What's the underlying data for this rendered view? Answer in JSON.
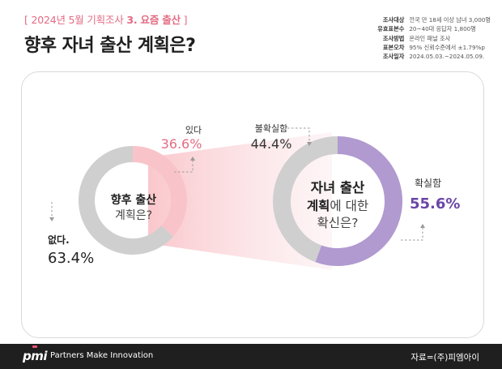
{
  "header": {
    "tag_open": "[ ",
    "tag_text": "2024년 5월 기획조사 ",
    "tag_strong": "3. 요즘 출산",
    "tag_close": " ]",
    "title": "향후 자녀 출산 계획은?"
  },
  "survey_info": [
    {
      "label": "조사대상",
      "value": "전국 만 18세 이상 남녀 3,000명"
    },
    {
      "label": "유효표본수",
      "value": "20~40대 응답자 1,800명"
    },
    {
      "label": "조사방법",
      "value": "온라인 패널 조사"
    },
    {
      "label": "표본오차",
      "value": "95% 신뢰수준에서 ±1.79%p"
    },
    {
      "label": "조사일자",
      "value": "2024.05.03.~2024.05.09."
    }
  ],
  "chart_data": [
    {
      "type": "pie",
      "variant": "donut",
      "title": "향후 출산 계획은?",
      "title_bold": "향후 출산",
      "title_light": "계획은?",
      "slices": [
        {
          "label": "있다",
          "value": 36.6,
          "display": "36.6%"
        },
        {
          "label": "없다.",
          "value": 63.4,
          "display": "63.4%"
        }
      ]
    },
    {
      "type": "pie",
      "variant": "donut",
      "title": "자녀 출산 계획에 대한 확신은?",
      "title_line1": "자녀 출산",
      "title_line2_bold": "계획",
      "title_line2_light": "에 대한",
      "title_line3": "확신은?",
      "slices": [
        {
          "label": "확실함",
          "value": 55.6,
          "display": "55.6%"
        },
        {
          "label": "불확실함",
          "value": 44.4,
          "display": "44.4%"
        }
      ]
    }
  ],
  "colors": {
    "accent_pink": "#e36b82",
    "light_pink": "#f9c4c9",
    "grey": "#cfcfcf",
    "purple": "#b09ad0",
    "purple_text": "#6b46a8"
  },
  "footer": {
    "logo": "pmi",
    "tagline": "Partners Make Innovation",
    "source": "자료=(주)피엠아이"
  }
}
